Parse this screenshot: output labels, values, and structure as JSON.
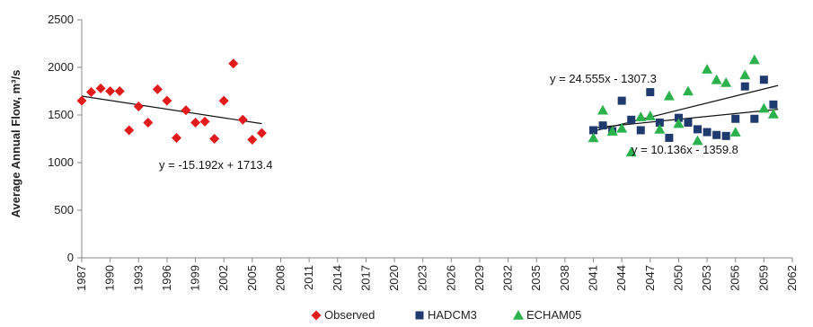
{
  "chart_data": {
    "type": "scatter",
    "ylabel": "Average Annual Flow, m³/s",
    "xlim": [
      1987,
      2062
    ],
    "ylim": [
      0,
      2500
    ],
    "y_ticks": [
      0,
      500,
      1000,
      1500,
      2000,
      2500
    ],
    "x_ticks": [
      1987,
      1990,
      1993,
      1996,
      1999,
      2002,
      2005,
      2008,
      2011,
      2014,
      2017,
      2020,
      2023,
      2026,
      2029,
      2032,
      2035,
      2038,
      2041,
      2044,
      2047,
      2050,
      2053,
      2056,
      2059,
      2062
    ],
    "grid": false,
    "legend_position": "bottom",
    "series": [
      {
        "name": "Observed",
        "marker": "diamond",
        "color": "#e31a1c",
        "points": [
          [
            1987,
            1650
          ],
          [
            1988,
            1740
          ],
          [
            1989,
            1780
          ],
          [
            1990,
            1750
          ],
          [
            1991,
            1750
          ],
          [
            1992,
            1340
          ],
          [
            1993,
            1590
          ],
          [
            1994,
            1420
          ],
          [
            1995,
            1770
          ],
          [
            1996,
            1650
          ],
          [
            1997,
            1260
          ],
          [
            1998,
            1550
          ],
          [
            1999,
            1420
          ],
          [
            2000,
            1430
          ],
          [
            2001,
            1250
          ],
          [
            2002,
            1650
          ],
          [
            2003,
            2040
          ],
          [
            2004,
            1450
          ],
          [
            2005,
            1240
          ],
          [
            2006,
            1310
          ]
        ]
      },
      {
        "name": "HADCM3",
        "marker": "square",
        "color": "#1f3a6e",
        "points": [
          [
            2041,
            1340
          ],
          [
            2042,
            1390
          ],
          [
            2043,
            1330
          ],
          [
            2044,
            1650
          ],
          [
            2045,
            1450
          ],
          [
            2046,
            1340
          ],
          [
            2047,
            1740
          ],
          [
            2048,
            1420
          ],
          [
            2049,
            1260
          ],
          [
            2050,
            1470
          ],
          [
            2051,
            1420
          ],
          [
            2052,
            1350
          ],
          [
            2053,
            1320
          ],
          [
            2054,
            1290
          ],
          [
            2055,
            1280
          ],
          [
            2056,
            1460
          ],
          [
            2057,
            1800
          ],
          [
            2058,
            1460
          ],
          [
            2059,
            1870
          ],
          [
            2060,
            1610
          ]
        ]
      },
      {
        "name": "ECHAM05",
        "marker": "triangle",
        "color": "#2bb24c",
        "points": [
          [
            2041,
            1260
          ],
          [
            2042,
            1550
          ],
          [
            2043,
            1330
          ],
          [
            2044,
            1360
          ],
          [
            2045,
            1110
          ],
          [
            2046,
            1480
          ],
          [
            2047,
            1490
          ],
          [
            2048,
            1350
          ],
          [
            2049,
            1700
          ],
          [
            2050,
            1410
          ],
          [
            2051,
            1750
          ],
          [
            2052,
            1230
          ],
          [
            2053,
            1980
          ],
          [
            2054,
            1870
          ],
          [
            2055,
            1840
          ],
          [
            2056,
            1320
          ],
          [
            2057,
            1920
          ],
          [
            2058,
            2080
          ],
          [
            2059,
            1570
          ],
          [
            2060,
            1510
          ]
        ]
      }
    ],
    "trendlines": [
      {
        "label": "y = -15.192x + 1713.4",
        "x_start": 1987,
        "x_end": 2006,
        "y_start": 1698,
        "y_end": 1409
      },
      {
        "label": "y = 24.555x - 1307.3",
        "x_start": 2041,
        "x_end": 2060.5,
        "y_start": 1330,
        "y_end": 1810
      },
      {
        "label": "y = 10.136x - 1359.8",
        "x_start": 2041,
        "x_end": 2060.5,
        "y_start": 1365,
        "y_end": 1560
      }
    ]
  }
}
